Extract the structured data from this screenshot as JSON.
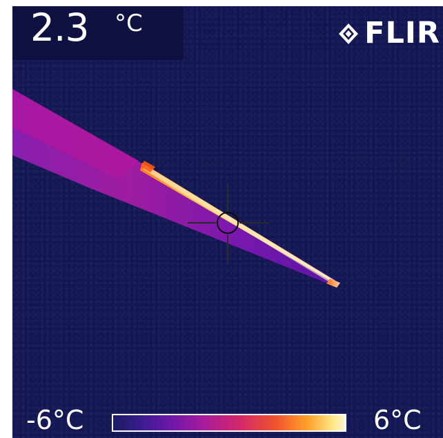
{
  "reading": {
    "value": "2.3",
    "unit": "°C"
  },
  "brand": {
    "name": "FLIR"
  },
  "scale": {
    "min_label": "-6°C",
    "max_label": "6°C"
  },
  "colors": {
    "background": "#13164f",
    "palette_low": "#1b1b62",
    "palette_mid": "#a21b9f",
    "palette_high": "#fff5d1"
  }
}
